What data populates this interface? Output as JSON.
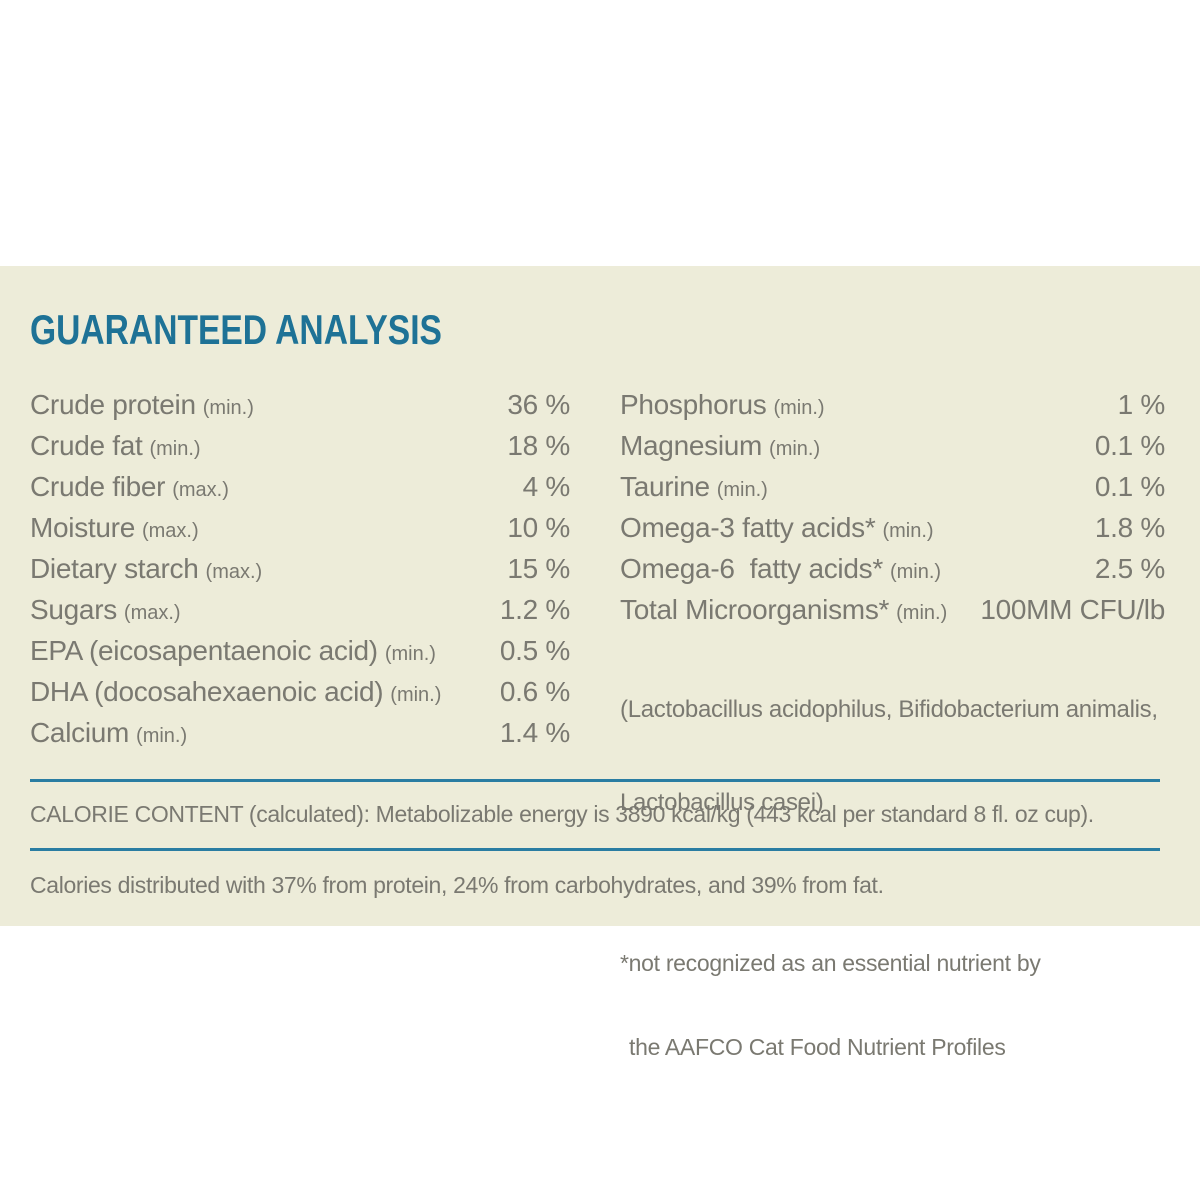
{
  "page": {
    "title": "GUARANTEED ANALYSIS"
  },
  "analysis": {
    "left_column": [
      {
        "label": "Crude protein",
        "qualifier": "(min.)",
        "value": "36 %"
      },
      {
        "label": "Crude fat",
        "qualifier": "(min.)",
        "value": "18 %"
      },
      {
        "label": "Crude fiber",
        "qualifier": "(max.)",
        "value": "4 %"
      },
      {
        "label": "Moisture",
        "qualifier": "(max.)",
        "value": "10 %"
      },
      {
        "label": "Dietary starch",
        "qualifier": "(max.)",
        "value": "15 %"
      },
      {
        "label": "Sugars",
        "qualifier": "(max.)",
        "value": "1.2 %"
      },
      {
        "label": "EPA (eicosapentaenoic acid)",
        "qualifier": "(min.)",
        "value": "0.5 %"
      },
      {
        "label": "DHA (docosahexaenoic acid)",
        "qualifier": "(min.)",
        "value": "0.6 %"
      },
      {
        "label": "Calcium",
        "qualifier": "(min.)",
        "value": "1.4 %"
      }
    ],
    "right_column": [
      {
        "label": "Phosphorus",
        "qualifier": "(min.)",
        "value": "1 %"
      },
      {
        "label": "Magnesium",
        "qualifier": "(min.)",
        "value": "0.1 %"
      },
      {
        "label": "Taurine",
        "qualifier": "(min.)",
        "value": "0.1 %"
      },
      {
        "label": "Omega-3 fatty acids*",
        "qualifier": "(min.)",
        "value": "1.8 %"
      },
      {
        "label": "Omega-6  fatty acids*",
        "qualifier": "(min.)",
        "value": "2.5 %"
      },
      {
        "label": "Total Microorganisms*",
        "qualifier": "(min.)",
        "value": "100MM CFU/lb"
      }
    ],
    "microorganisms_species_line1": "(Lactobacillus acidophilus, Bifidobacterium animalis,",
    "microorganisms_species_line2": "Lactobacillus casei)",
    "footnote_line1": "*not recognized as an essential nutrient by",
    "footnote_line2": "the AAFCO Cat Food Nutrient Profiles"
  },
  "calorie_content": "CALORIE CONTENT (calculated): Metabolizable energy is 3890 kcal/kg (443 kcal per standard 8 fl. oz cup).",
  "calories_distribution": "Calories distributed with 37% from protein, 24% from carbohydrates, and 39% from fat.",
  "colors": {
    "panel_background": "#edecd9",
    "title_teal": "#1e7296",
    "body_gray": "#7a7971",
    "rule_teal": "#2a7da2"
  }
}
